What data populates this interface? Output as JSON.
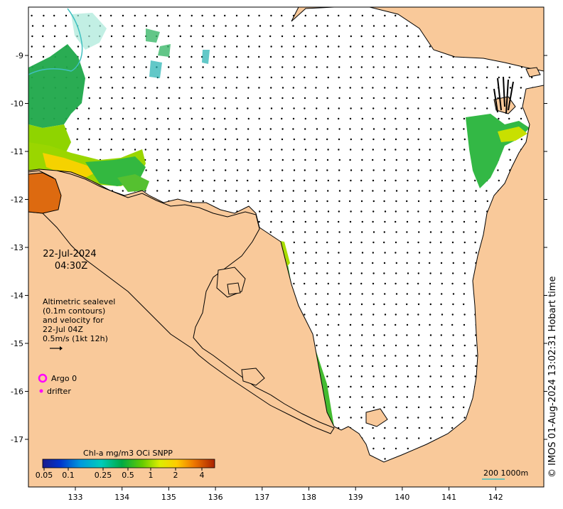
{
  "map": {
    "lon_ticks": [
      "133",
      "134",
      "135",
      "136",
      "137",
      "138",
      "139",
      "140",
      "141",
      "142"
    ],
    "lat_ticks": [
      "-9",
      "-10",
      "-11",
      "-12",
      "-13",
      "-14",
      "-15",
      "-16",
      "-17"
    ],
    "colors": {
      "land": "#f9c99a",
      "sea": "#ffffff",
      "coast": "#000000",
      "arrows": "#000000"
    }
  },
  "timestamp": {
    "date": "22-Jul-2024",
    "time": "04:30Z"
  },
  "altimetry_note": {
    "lines": [
      "Altimetric sealevel",
      "(0.1m contours)",
      "and velocity for",
      "22-Jul 04Z",
      "0.5m/s (1kt 12h)"
    ]
  },
  "legend": {
    "argo_label": "Argo 0",
    "drifter_label": "drifter",
    "argo_color": "#ff00ff",
    "drifter_color": "#ff00ff"
  },
  "colorbar": {
    "title": "Chl-a mg/m3 OCi SNPP",
    "ticks": [
      "0.05",
      "0.1",
      "0.25",
      "0.5",
      "1",
      "2",
      "4"
    ]
  },
  "scale_bar": {
    "label": "200  1000m"
  },
  "credit": "© IMOS 01-Aug-2024 13:02:31 Hobart time"
}
